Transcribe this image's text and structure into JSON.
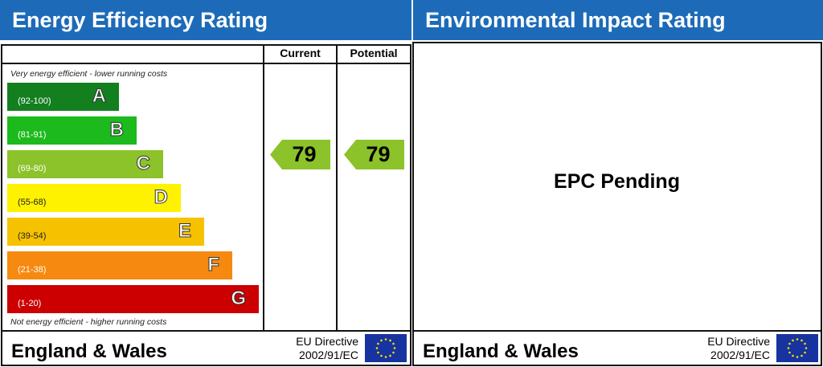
{
  "energy": {
    "title": "Energy Efficiency Rating",
    "col_current": "Current",
    "col_potential": "Potential",
    "top_note": "Very energy efficient - lower running costs",
    "bottom_note": "Not energy efficient - higher running costs",
    "bands": [
      {
        "letter": "A",
        "range": "(92-100)",
        "color": "#137f1f"
      },
      {
        "letter": "B",
        "range": "(81-91)",
        "color": "#1cba1c"
      },
      {
        "letter": "C",
        "range": "(69-80)",
        "color": "#8cc22a"
      },
      {
        "letter": "D",
        "range": "(55-68)",
        "color": "#fff200"
      },
      {
        "letter": "E",
        "range": "(39-54)",
        "color": "#f6c200"
      },
      {
        "letter": "F",
        "range": "(21-38)",
        "color": "#f6890f"
      },
      {
        "letter": "G",
        "range": "(1-20)",
        "color": "#cc0000"
      }
    ],
    "current": "79",
    "potential": "79",
    "rating_color": "#8cc22a",
    "footer": {
      "region": "England & Wales",
      "directive_line1": "EU Directive",
      "directive_line2": "2002/91/EC"
    }
  },
  "environmental": {
    "title": "Environmental Impact Rating",
    "status": "EPC Pending",
    "footer": {
      "region": "England & Wales",
      "directive_line1": "EU Directive",
      "directive_line2": "2002/91/EC"
    }
  }
}
